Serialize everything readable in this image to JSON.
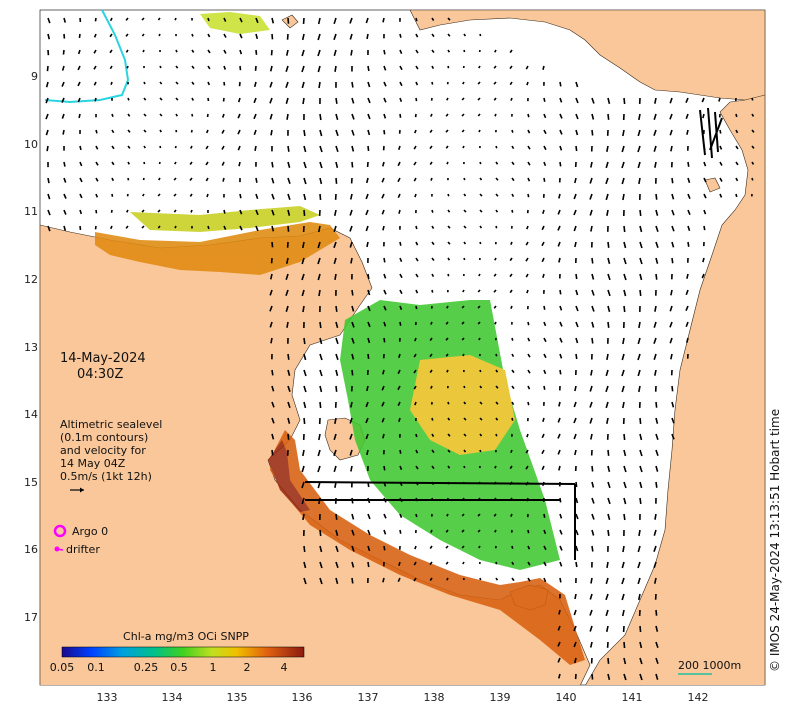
{
  "map": {
    "date": "14-May-2024",
    "time": "04:30Z",
    "legend_lines": [
      "Altimetric sealevel",
      "(0.1m contours)",
      "and velocity for",
      "14 May 04Z",
      "0.5m/s (1kt 12h)"
    ],
    "argo_label": "Argo 0",
    "drifter_label": "drifter",
    "colorbar_title": "Chl-a mg/m3 OCi SNPP",
    "colorbar_ticks": [
      "0.05",
      "0.1",
      "0.25",
      "0.5",
      "1",
      "2",
      "4"
    ],
    "colorbar_tick_values": [
      0.05,
      0.1,
      0.25,
      0.5,
      1,
      2,
      4
    ],
    "scale_label": "200  1000m",
    "credit": "© IMOS 24-May-2024 13:13:51 Hobart time",
    "lon_ticks": [
      "133",
      "134",
      "135",
      "136",
      "137",
      "138",
      "139",
      "140",
      "141",
      "142"
    ],
    "lat_ticks": [
      "9",
      "10",
      "11",
      "12",
      "13",
      "14",
      "15",
      "16",
      "17"
    ],
    "colors": {
      "land": "#f9c79a",
      "ocean": "#ffffff",
      "argo": "#ff00ff",
      "drifter": "#ff00ff",
      "contour_cyan": "#2ad4e0",
      "vector": "#000000",
      "bathy": "#20c0a0"
    }
  }
}
